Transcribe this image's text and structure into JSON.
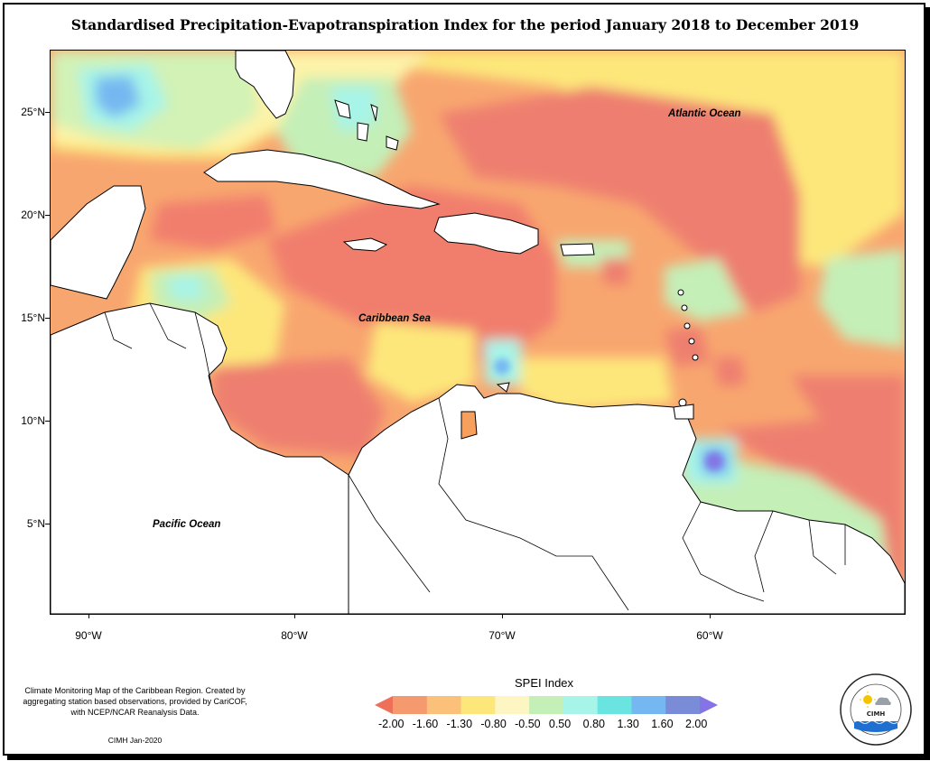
{
  "title": "Standardised Precipitation-Evapotranspiration Index for the period January 2018 to December 2019",
  "lat_labels": [
    "25°N",
    "20°N",
    "15°N",
    "10°N",
    "5°N"
  ],
  "lon_labels": [
    "90°W",
    "80°W",
    "70°W",
    "60°W"
  ],
  "places": {
    "atlantic": "Atlantic Ocean",
    "caribbean": "Caribbean Sea",
    "pacific": "Pacific Ocean"
  },
  "legend": {
    "title": "SPEI Index",
    "breaks": [
      "-2.00",
      "-1.60",
      "-1.30",
      "-0.80",
      "-0.50",
      "0.50",
      "0.80",
      "1.30",
      "1.60",
      "2.00"
    ],
    "colors": [
      "#ee7058",
      "#f59a6e",
      "#fbc07a",
      "#fde77a",
      "#fdf6c2",
      "#c4efb7",
      "#a7f4e8",
      "#69e4e1",
      "#75b8f1",
      "#7a8bd8",
      "#8474e6"
    ]
  },
  "credits": {
    "text": "Climate Monitoring Map of the Caribbean Region. Created by aggregating station based observations, provided by CariCOF, with NCEP/NCAR Reanalysis Data.",
    "date": "CIMH Jan-2020"
  },
  "logo": {
    "name": "CIMH",
    "ring_text": "Caribbean Institute for Meteorology and Hydrology"
  }
}
